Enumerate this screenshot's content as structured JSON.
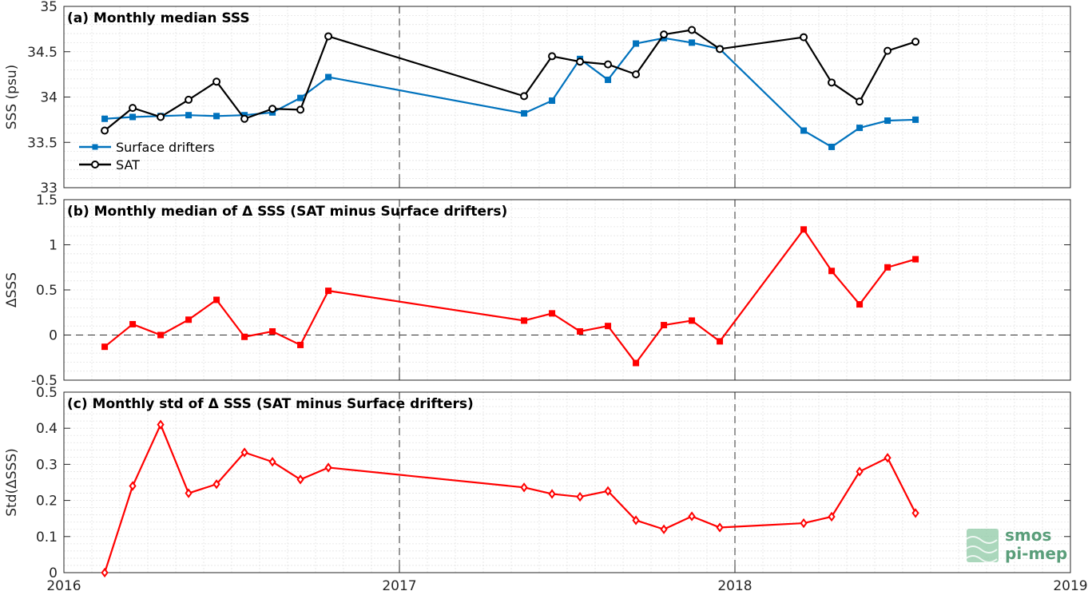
{
  "chart_data": [
    {
      "type": "line",
      "title": "(a) Monthly median SSS",
      "ylabel": "SSS (psu)",
      "ylim": [
        33,
        35
      ],
      "yticks": [
        "33",
        "33.5",
        "34",
        "34.5",
        "35"
      ],
      "xlim": [
        "2016-01-01",
        "2019-01-01"
      ],
      "xticks": [
        "2016",
        "2017",
        "2018",
        "2019"
      ],
      "grid": "minor",
      "legend_position": "bottom-left",
      "series": [
        {
          "name": "Surface drifters",
          "color": "#0072BD",
          "marker": "square",
          "x": [
            "2016-02",
            "2016-03",
            "2016-04",
            "2016-05",
            "2016-06",
            "2016-07",
            "2016-08",
            "2016-09",
            "2016-10",
            "2017-05",
            "2017-06",
            "2017-07",
            "2017-08",
            "2017-09",
            "2017-10",
            "2017-11",
            "2017-12",
            "2018-03",
            "2018-04",
            "2018-05",
            "2018-06",
            "2018-07"
          ],
          "values": [
            33.76,
            33.78,
            33.79,
            33.8,
            33.79,
            33.8,
            33.83,
            33.99,
            34.22,
            33.82,
            33.96,
            34.42,
            34.19,
            34.59,
            34.65,
            34.6,
            34.53,
            33.63,
            33.45,
            33.66,
            33.74,
            33.75
          ]
        },
        {
          "name": "SAT",
          "color": "#000000",
          "marker": "circle",
          "x": [
            "2016-02",
            "2016-03",
            "2016-04",
            "2016-05",
            "2016-06",
            "2016-07",
            "2016-08",
            "2016-09",
            "2016-10",
            "2017-05",
            "2017-06",
            "2017-07",
            "2017-08",
            "2017-09",
            "2017-10",
            "2017-11",
            "2017-12",
            "2018-03",
            "2018-04",
            "2018-05",
            "2018-06",
            "2018-07"
          ],
          "values": [
            33.63,
            33.88,
            33.78,
            33.97,
            34.17,
            33.76,
            33.87,
            33.86,
            34.67,
            34.01,
            34.45,
            34.39,
            34.36,
            34.25,
            34.69,
            34.74,
            34.53,
            34.66,
            34.16,
            33.95,
            34.51,
            34.61
          ]
        }
      ]
    },
    {
      "type": "line",
      "title": "(b) Monthly median of Δ SSS (SAT minus Surface drifters)",
      "ylabel": "ΔSSS",
      "ylim": [
        -0.5,
        1.5
      ],
      "yticks": [
        "-0.5",
        "0",
        "0.5",
        "1",
        "1.5"
      ],
      "xlim": [
        "2016-01-01",
        "2019-01-01"
      ],
      "xticks": [
        "2016",
        "2017",
        "2018",
        "2019"
      ],
      "grid": "minor",
      "series": [
        {
          "color": "#FF0000",
          "marker": "square",
          "x": [
            "2016-02",
            "2016-03",
            "2016-04",
            "2016-05",
            "2016-06",
            "2016-07",
            "2016-08",
            "2016-09",
            "2016-10",
            "2017-05",
            "2017-06",
            "2017-07",
            "2017-08",
            "2017-09",
            "2017-10",
            "2017-11",
            "2017-12",
            "2018-03",
            "2018-04",
            "2018-05",
            "2018-06",
            "2018-07"
          ],
          "values": [
            -0.13,
            0.12,
            0.0,
            0.17,
            0.39,
            -0.02,
            0.04,
            -0.11,
            0.49,
            0.16,
            0.24,
            0.04,
            0.1,
            -0.31,
            0.11,
            0.16,
            -0.07,
            1.17,
            0.71,
            0.34,
            0.75,
            0.84
          ]
        }
      ]
    },
    {
      "type": "line",
      "title": "(c) Monthly std of Δ SSS (SAT minus Surface drifters)",
      "ylabel": "Std(ΔSSS)",
      "ylim": [
        0,
        0.5
      ],
      "yticks": [
        "0",
        "0.1",
        "0.2",
        "0.3",
        "0.4",
        "0.5"
      ],
      "xlim": [
        "2016-01-01",
        "2019-01-01"
      ],
      "xticks": [
        "2016",
        "2017",
        "2018",
        "2019"
      ],
      "grid": "minor",
      "series": [
        {
          "color": "#FF0000",
          "marker": "diamond",
          "x": [
            "2016-02",
            "2016-03",
            "2016-04",
            "2016-05",
            "2016-06",
            "2016-07",
            "2016-08",
            "2016-09",
            "2016-10",
            "2017-05",
            "2017-06",
            "2017-07",
            "2017-08",
            "2017-09",
            "2017-10",
            "2017-11",
            "2017-12",
            "2018-03",
            "2018-04",
            "2018-05",
            "2018-06",
            "2018-07"
          ],
          "values": [
            0.0,
            0.24,
            0.41,
            0.22,
            0.245,
            0.333,
            0.307,
            0.258,
            0.291,
            0.236,
            0.218,
            0.21,
            0.226,
            0.145,
            0.12,
            0.156,
            0.125,
            0.137,
            0.155,
            0.28,
            0.318,
            0.165
          ]
        }
      ]
    }
  ],
  "logo": {
    "line1": "smos",
    "line2": "pi-mep"
  }
}
